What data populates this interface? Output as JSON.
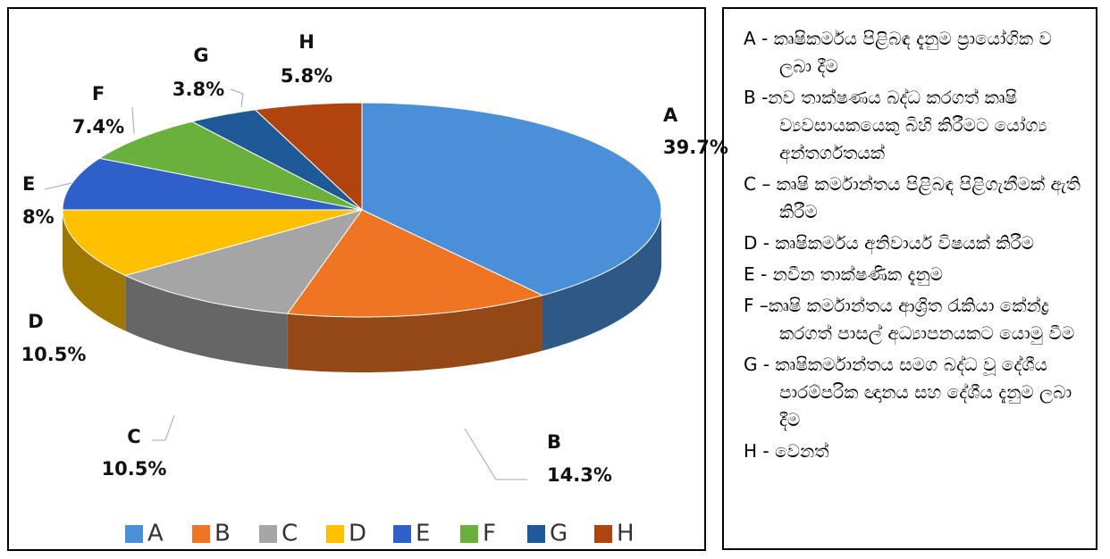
{
  "chart_data": {
    "type": "pie3d",
    "categories": [
      "A",
      "B",
      "C",
      "D",
      "E",
      "F",
      "G",
      "H"
    ],
    "values": [
      39.7,
      14.3,
      10.5,
      10.5,
      8,
      7.4,
      3.8,
      5.8
    ],
    "value_labels": [
      "39.7%",
      "14.3%",
      "10.5%",
      "10.5%",
      "8%",
      "7.4%",
      "3.8%",
      "5.8%"
    ],
    "colors": [
      "#4a90d9",
      "#ef7423",
      "#a5a5a5",
      "#ffc000",
      "#2f5fc9",
      "#6ab03c",
      "#1f5a96",
      "#b0440e"
    ],
    "legend": "bottom"
  },
  "key": [
    "A - කෘෂිකර්මය පිළිබඳ දැනුම ප්‍රායෝගික ව ලබා දීම",
    "B -නව තාක්ෂණය බද්ධ කරගත් කෘෂි ව්‍යවසායකයෙකු බිහි කිරීමට යෝග්‍ය අන්තර්ගතයක්",
    "C – කෘෂි කර්මාන්තය පිළිබඳ පිළිගැනීමක් ඇති කිරීම",
    "D - කෘෂිකර්මය අනිවාර්ය විෂයක් කිරීම",
    "E - නවීන තාක්ෂණික දැනුම",
    "F –කෘෂි කර්මාන්තය ආශ්‍රිත රැකියා කේන්ද්‍ර කරගත් පාසල් අධ්‍යාපනයකට යොමු වීම",
    "G - කෘෂිකර්මාන්තය සමග බද්ධ වූ දේශීය පාරම්පරික ඥානය සහ දේශීය දැනුම ලබා දීම",
    "H - වෙනත්"
  ]
}
